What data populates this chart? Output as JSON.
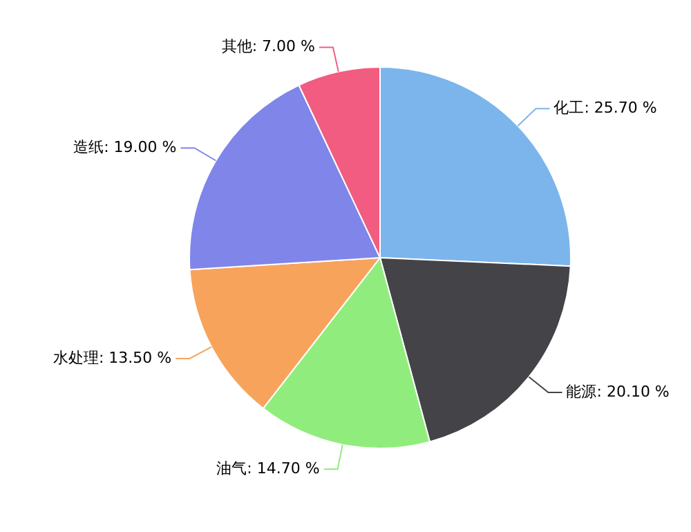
{
  "chart_data": {
    "type": "pie",
    "categories": [
      "化工",
      "能源",
      "油气",
      "水处理",
      "造纸",
      "其他"
    ],
    "values": [
      25.7,
      20.1,
      14.7,
      13.5,
      19.0,
      7.0
    ],
    "value_labels": [
      "25.70 %",
      "20.10 %",
      "14.70 %",
      "13.50 %",
      "19.00 %",
      "7.00 %"
    ],
    "colors": [
      "#7cb5ec",
      "#434348",
      "#90ed7d",
      "#f7a35c",
      "#8085e9",
      "#f15c80"
    ],
    "legend": false
  }
}
